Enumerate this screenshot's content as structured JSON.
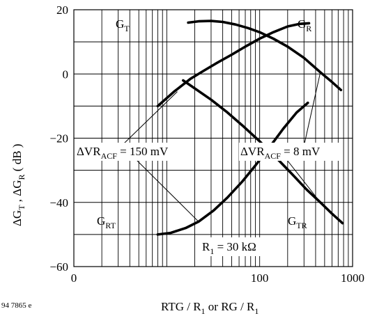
{
  "chart_data": {
    "type": "line",
    "x_scale": "log",
    "xlim": [
      1,
      1000
    ],
    "ylim": [
      -60,
      20
    ],
    "grid": true,
    "x_ticks": [
      {
        "value": 1,
        "label": "0"
      },
      {
        "value": 100,
        "label": "100"
      },
      {
        "value": 1000,
        "label": "1000"
      }
    ],
    "y_ticks": [
      {
        "value": 20,
        "label": "20"
      },
      {
        "value": 0,
        "label": "0"
      },
      {
        "value": -20,
        "label": "−20"
      },
      {
        "value": -40,
        "label": "−40"
      },
      {
        "value": -60,
        "label": "−60"
      }
    ],
    "xlabel": {
      "a": "RTG / R",
      "b": "1",
      "c": " or RG / R",
      "d": "1"
    },
    "ylabel": {
      "a": "ΔG",
      "b": "T",
      "c": " , ΔG",
      "d": "R",
      "e": " ( dB )"
    },
    "figure_id": "94 7865 e",
    "series": [
      {
        "name": {
          "main": "G",
          "sub": "T"
        },
        "x": [
          17,
          22,
          30,
          40,
          55,
          75,
          100,
          140,
          200,
          300,
          450,
          600,
          750
        ],
        "y": [
          16,
          16.4,
          16.5,
          16.2,
          15.4,
          14.3,
          13,
          11,
          8.5,
          5,
          0.5,
          -2.5,
          -5
        ]
      },
      {
        "name": {
          "main": "G",
          "sub": "R"
        },
        "x": [
          8,
          12,
          18,
          25,
          35,
          50,
          70,
          100,
          140,
          200,
          270,
          340
        ],
        "y": [
          -10,
          -5.5,
          -1.5,
          1,
          3.5,
          6,
          8.5,
          11,
          13,
          14.8,
          15.6,
          15.8
        ]
      },
      {
        "name": {
          "main": "G",
          "sub": "TR"
        },
        "x": [
          15,
          20,
          30,
          45,
          65,
          100,
          150,
          220,
          320,
          450,
          600,
          780
        ],
        "y": [
          -2,
          -4.5,
          -8,
          -12,
          -16,
          -21,
          -26,
          -31,
          -36,
          -40,
          -43.5,
          -46.5
        ]
      },
      {
        "name": {
          "main": "G",
          "sub": "RT"
        },
        "x": [
          8,
          11,
          16,
          22,
          32,
          45,
          65,
          90,
          130,
          180,
          250,
          330
        ],
        "y": [
          -50,
          -49.5,
          -48,
          -46,
          -42.5,
          -38.5,
          -33.5,
          -28.5,
          -22.5,
          -17,
          -12,
          -9
        ]
      }
    ],
    "annotations": {
      "dvr150": {
        "a": "ΔVR",
        "b": "ACF",
        "c": " = 150 mV"
      },
      "dvr8": {
        "a": "ΔVR",
        "b": "ACF",
        "c": " = 8 mV"
      },
      "r1": {
        "a": "R",
        "b": "1",
        "c": " = 30 kΩ"
      }
    }
  }
}
